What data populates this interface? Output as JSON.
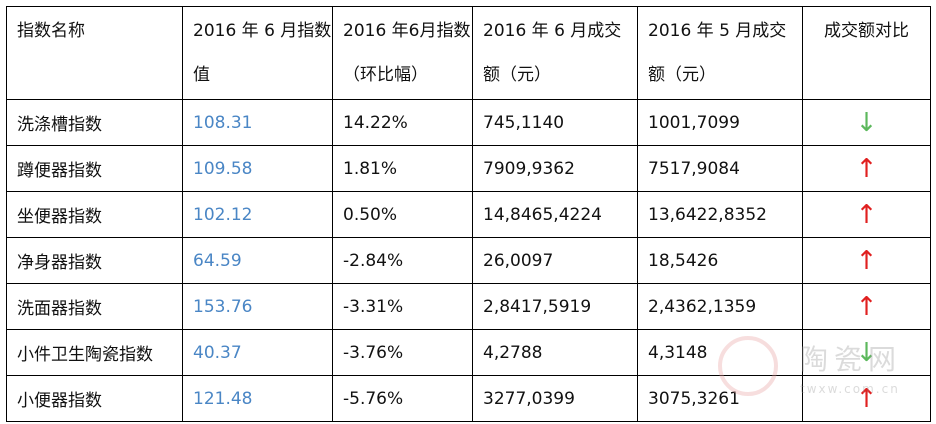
{
  "table": {
    "headers": [
      "指数名称",
      "2016 年 6 月指数值",
      "2016 年6月指数（环比幅）",
      "2016 年 6 月成交额（元）",
      "2016 年 5 月成交额（元）",
      "成交额对比"
    ],
    "rows": [
      {
        "name": "洗涤槽指数",
        "index": "108.31",
        "change": "14.22%",
        "june": "745,1140",
        "may": "1001,7099",
        "trend": "down",
        "arrow": "↓"
      },
      {
        "name": "蹲便器指数",
        "index": "109.58",
        "change": "1.81%",
        "june": "7909,9362",
        "may": "7517,9084",
        "trend": "up",
        "arrow": "↑"
      },
      {
        "name": "坐便器指数",
        "index": "102.12",
        "change": "0.50%",
        "june": "14,8465,4224",
        "may": "13,6422,8352",
        "trend": "up",
        "arrow": "↑"
      },
      {
        "name": "净身器指数",
        "index": "64.59",
        "change": "-2.84%",
        "june": "26,0097",
        "may": "18,5426",
        "trend": "up",
        "arrow": "↑"
      },
      {
        "name": "洗面器指数",
        "index": "153.76",
        "change": "-3.31%",
        "june": "2,8417,5919",
        "may": "2,4362,1359",
        "trend": "up",
        "arrow": "↑"
      },
      {
        "name": "小件卫生陶瓷指数",
        "index": "40.37",
        "change": "-3.76%",
        "june": "4,2788",
        "may": "4,3148",
        "trend": "down",
        "arrow": "↓"
      },
      {
        "name": "小便器指数",
        "index": "121.48",
        "change": "-5.76%",
        "june": "3277,0399",
        "may": "3075,3261",
        "trend": "up",
        "arrow": "↑"
      }
    ]
  },
  "colors": {
    "index_value": "#4a86c5",
    "up": "#e02020",
    "down": "#5cb85c"
  },
  "watermark": {
    "text": "陶瓷网",
    "url": "twxw.com.cn"
  }
}
